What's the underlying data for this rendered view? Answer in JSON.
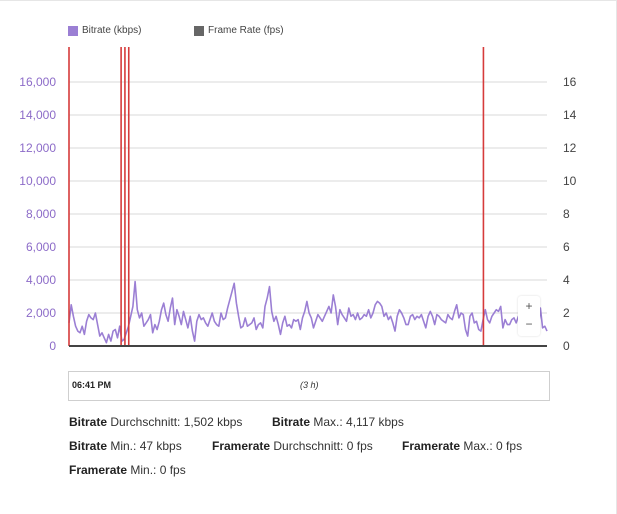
{
  "legend": [
    {
      "label": "Bitrate (kbps)",
      "color": "#9b7fd4"
    },
    {
      "label": "Frame Rate (fps)",
      "color": "#666666"
    }
  ],
  "zoom": {
    "plus": "+",
    "minus": "−"
  },
  "navigator": {
    "start_time": "06:41 PM",
    "range": "(3 h)"
  },
  "stats": [
    {
      "name": "Bitrate",
      "label": " Durchschnitt: ",
      "value": "1,502 kbps"
    },
    {
      "name": "Bitrate",
      "label": " Max.: ",
      "value": "4,117 kbps"
    },
    {
      "name": "Bitrate",
      "label": " Min.: ",
      "value": "47 kbps"
    },
    {
      "name": "Framerate",
      "label": " Durchschnitt: ",
      "value": "0 fps"
    },
    {
      "name": "Framerate",
      "label": " Max.: ",
      "value": "0 fps"
    },
    {
      "name": "Framerate",
      "label": " Min.: ",
      "value": "0 fps"
    }
  ],
  "chart_data": {
    "type": "line",
    "left_axis": {
      "ticks": [
        "0",
        "2,000",
        "4,000",
        "6,000",
        "8,000",
        "10,000",
        "12,000",
        "14,000",
        "16,000"
      ],
      "ylim": [
        0,
        16000
      ],
      "color": "#8c6bc8"
    },
    "right_axis": {
      "ticks": [
        "0",
        "2",
        "4",
        "6",
        "8",
        "10",
        "12",
        "14",
        "16"
      ],
      "ylim": [
        0,
        16
      ]
    },
    "grid": true,
    "series": [
      {
        "name": "Bitrate (kbps)",
        "color": "#9b7fd4",
        "x_range": [
          0,
          1
        ],
        "values": [
          1400,
          2500,
          1800,
          1200,
          900,
          800,
          1200,
          700,
          1500,
          1900,
          1700,
          1600,
          2000,
          1300,
          600,
          800,
          500,
          200,
          700,
          300,
          900,
          1000,
          500,
          1200,
          300,
          400,
          800,
          1200,
          1800,
          2400,
          3900,
          2200,
          1700,
          2000,
          1200,
          1400,
          1600,
          1900,
          800,
          1300,
          1000,
          1500,
          2200,
          2600,
          1900,
          1500,
          2300,
          2900,
          1300,
          2200,
          1800,
          1300,
          2100,
          1600,
          1100,
          1800,
          900,
          300,
          1500,
          1900,
          1600,
          1700,
          1400,
          1200,
          1600,
          2000,
          1500,
          1300,
          1200,
          2000,
          1600,
          1700,
          2300,
          2800,
          3300,
          3800,
          2600,
          1800,
          1100,
          1200,
          1700,
          1200,
          1300,
          1400,
          1700,
          1000,
          1300,
          1400,
          1100,
          2400,
          2900,
          3600,
          2100,
          1500,
          1800,
          1300,
          700,
          1400,
          1800,
          1200,
          1300,
          1100,
          1600,
          1500,
          1600,
          1000,
          1700,
          2100,
          2700,
          2000,
          1700,
          1100,
          1500,
          1900,
          1700,
          1500,
          1800,
          2100,
          2400,
          2000,
          3100,
          2400,
          1300,
          2200,
          1900,
          1700,
          1500,
          2300,
          1800,
          1900,
          1600,
          2000,
          1600,
          1700,
          1900,
          1800,
          2200,
          1700,
          2000,
          2500,
          2700,
          2600,
          2400,
          1800,
          2000,
          1600,
          1800,
          1400,
          900,
          1800,
          2200,
          2000,
          1700,
          1300,
          1300,
          1800,
          1900,
          1600,
          1800,
          1700,
          1900,
          1500,
          1100,
          1800,
          2100,
          1800,
          1300,
          1900,
          1800,
          1600,
          1500,
          1400,
          1900,
          1700,
          1600,
          2100,
          2500,
          1700,
          2000,
          1900,
          1000,
          600,
          1800,
          2000,
          1400,
          1500,
          1000,
          900,
          1600,
          2200,
          1600,
          1400,
          1800,
          2000,
          2200,
          2100,
          2400,
          1100,
          1600,
          1300,
          1300,
          1600,
          1700,
          1400,
          1800,
          1400,
          1200,
          800,
          900,
          800,
          700,
          1600,
          1800,
          1000,
          2300,
          1100,
          1200,
          900
        ]
      },
      {
        "name": "Frame Rate (fps)",
        "color": "#666666",
        "values": []
      }
    ],
    "red_markers": [
      0.0,
      0.109,
      0.117,
      0.125,
      0.867
    ]
  }
}
